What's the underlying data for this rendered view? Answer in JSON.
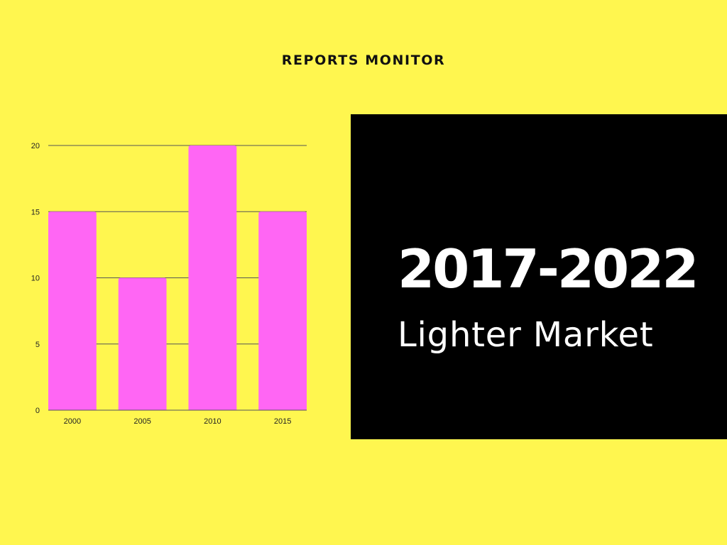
{
  "header": {
    "brand": "REPORTS MONITOR"
  },
  "panel": {
    "years": "2017-2022",
    "subtitle": "Lighter Market"
  },
  "colors": {
    "background": "#fff64f",
    "bar": "#ff66f4",
    "panel": "#000000",
    "grid": "#555555"
  },
  "chart_data": {
    "type": "bar",
    "categories": [
      "2000",
      "2005",
      "2010",
      "2015"
    ],
    "values": [
      15,
      10,
      20,
      15
    ],
    "title": "",
    "xlabel": "",
    "ylabel": "",
    "ylim": [
      0,
      20
    ],
    "yticks": [
      0,
      5,
      10,
      15,
      20
    ],
    "grid": true,
    "legend": "none"
  }
}
